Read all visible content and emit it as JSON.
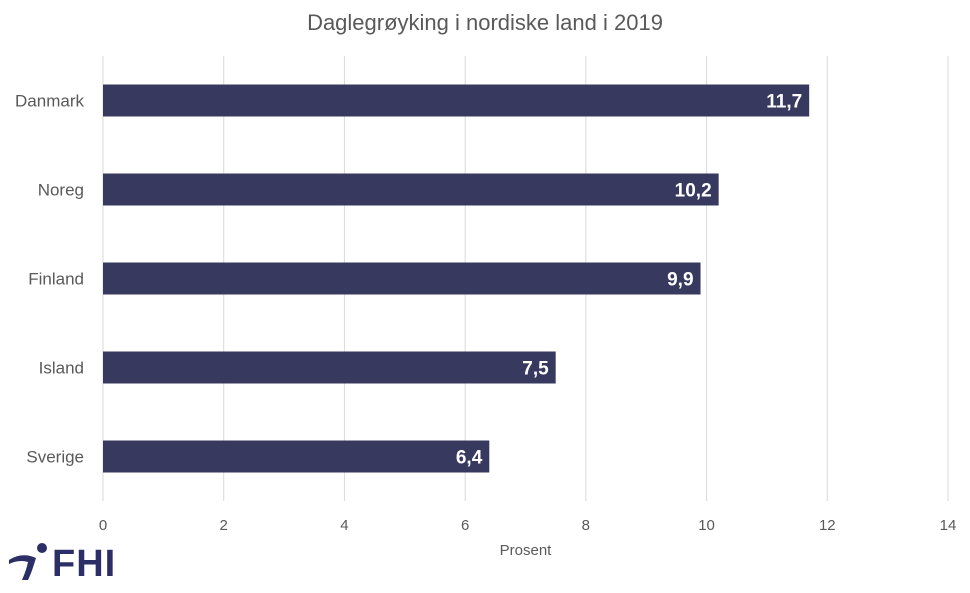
{
  "chart_data": {
    "type": "bar",
    "orientation": "horizontal",
    "title": "Daglegrøyking i nordiske land i 2019",
    "xlabel": "Prosent",
    "ylabel": "",
    "categories": [
      "Danmark",
      "Noreg",
      "Finland",
      "Island",
      "Sverige"
    ],
    "values": [
      11.7,
      10.2,
      9.9,
      7.5,
      6.4
    ],
    "data_labels": [
      "11,7",
      "10,2",
      "9,9",
      "7,5",
      "6,4"
    ],
    "xlim": [
      0,
      14
    ],
    "xticks": [
      "0",
      "2",
      "4",
      "6",
      "8",
      "10",
      "12",
      "14"
    ],
    "grid": "vertical",
    "legend": "none",
    "colors": {
      "bar": "#373a5e",
      "grid": "#d9d9d9",
      "text": "#595959",
      "label": "#ffffff"
    }
  },
  "logo": {
    "text": "FHI",
    "color": "#2b2f66"
  }
}
